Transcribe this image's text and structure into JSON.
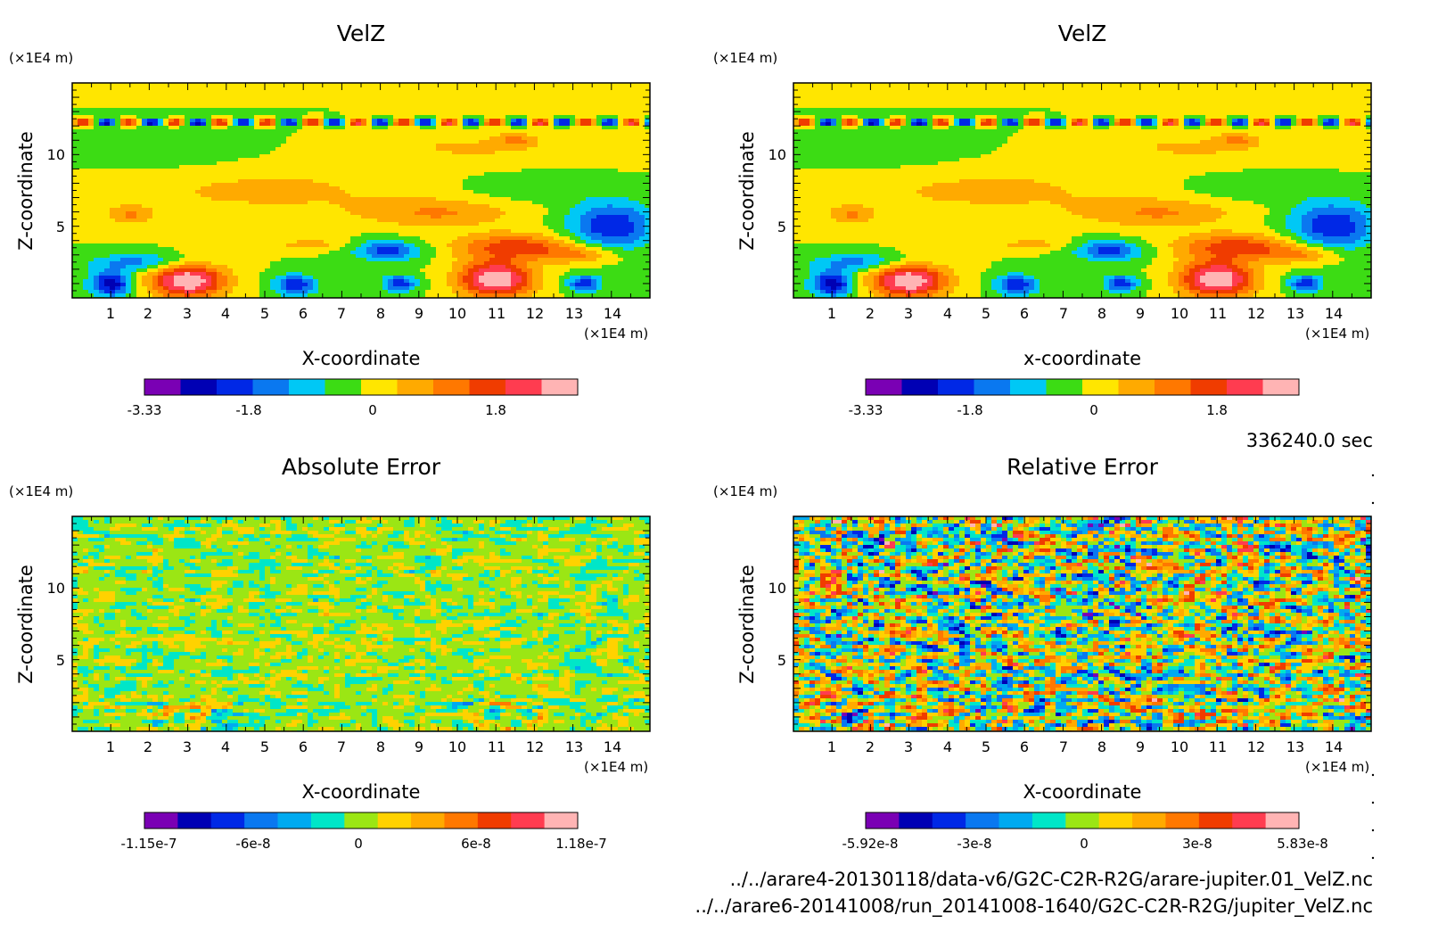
{
  "chart_data": [
    {
      "type": "heatmap",
      "title": "VelZ",
      "xlabel": "X-coordinate",
      "ylabel": "Z-coordinate",
      "x_unit": "(×1E4 m)",
      "y_unit": "(×1E4 m)",
      "xlim": [
        0,
        15
      ],
      "ylim": [
        0,
        15
      ],
      "x_ticks": [
        "1",
        "2",
        "3",
        "4",
        "5",
        "6",
        "7",
        "8",
        "9",
        "10",
        "11",
        "12",
        "13",
        "14"
      ],
      "y_ticks": [
        "5",
        "10"
      ],
      "field": "velz",
      "colorbar": {
        "colors": [
          "#7a00b4",
          "#0000b4",
          "#0028e6",
          "#0a78f0",
          "#00c8f5",
          "#3cdc14",
          "#ffe600",
          "#ffaa00",
          "#ff7800",
          "#f03c00",
          "#ff3c50",
          "#ffb4b4"
        ],
        "tick_labels": [
          "-3.33",
          "-1.8",
          "0",
          "1.8"
        ],
        "tick_values": [
          -3.33,
          -1.8,
          0,
          1.8
        ],
        "range": [
          -3.33,
          3.33
        ]
      }
    },
    {
      "type": "heatmap",
      "title": "VelZ",
      "xlabel": "x-coordinate",
      "ylabel": "Z-coordinate",
      "x_unit": "(×1E4 m)",
      "y_unit": "(×1E4 m)",
      "xlim": [
        0,
        15
      ],
      "ylim": [
        0,
        15
      ],
      "x_ticks": [
        "1",
        "2",
        "3",
        "4",
        "5",
        "6",
        "7",
        "8",
        "9",
        "10",
        "11",
        "12",
        "13",
        "14"
      ],
      "y_ticks": [
        "5",
        "10"
      ],
      "field": "velz",
      "colorbar": {
        "colors": [
          "#7a00b4",
          "#0000b4",
          "#0028e6",
          "#0a78f0",
          "#00c8f5",
          "#3cdc14",
          "#ffe600",
          "#ffaa00",
          "#ff7800",
          "#f03c00",
          "#ff3c50",
          "#ffb4b4"
        ],
        "tick_labels": [
          "-3.33",
          "-1.8",
          "0",
          "1.8"
        ],
        "tick_values": [
          -3.33,
          -1.8,
          0,
          1.8
        ],
        "range": [
          -3.33,
          3.33
        ]
      }
    },
    {
      "type": "heatmap",
      "title": "Absolute Error",
      "xlabel": "X-coordinate",
      "ylabel": "Z-coordinate",
      "x_unit": "(×1E4 m)",
      "y_unit": "(×1E4 m)",
      "xlim": [
        0,
        15
      ],
      "ylim": [
        0,
        15
      ],
      "x_ticks": [
        "1",
        "2",
        "3",
        "4",
        "5",
        "6",
        "7",
        "8",
        "9",
        "10",
        "11",
        "12",
        "13",
        "14"
      ],
      "y_ticks": [
        "5",
        "10"
      ],
      "field": "abs",
      "colorbar": {
        "colors": [
          "#7a00b4",
          "#0000b4",
          "#0028e6",
          "#0a78f0",
          "#00aaf0",
          "#00e6c8",
          "#9be614",
          "#ffd200",
          "#ffaa00",
          "#ff7800",
          "#f03c00",
          "#ff3c50",
          "#ffb4b4"
        ],
        "tick_labels": [
          "-1.15e-7",
          "-6e-8",
          "0",
          "6e-8",
          "1.18e-7"
        ],
        "tick_values": [
          -1.15e-07,
          -6e-08,
          0,
          6e-08,
          1.18e-07
        ],
        "range": [
          -1.15e-07,
          1.18e-07
        ]
      }
    },
    {
      "type": "heatmap",
      "title": "Relative Error",
      "xlabel": "X-coordinate",
      "ylabel": "Z-coordinate",
      "x_unit": "(×1E4 m)",
      "y_unit": "(×1E4 m)",
      "xlim": [
        0,
        15
      ],
      "ylim": [
        0,
        15
      ],
      "x_ticks": [
        "1",
        "2",
        "3",
        "4",
        "5",
        "6",
        "7",
        "8",
        "9",
        "10",
        "11",
        "12",
        "13",
        "14"
      ],
      "y_ticks": [
        "5",
        "10"
      ],
      "field": "rel",
      "colorbar": {
        "colors": [
          "#7a00b4",
          "#0000b4",
          "#0028e6",
          "#0a78f0",
          "#00aaf0",
          "#00e6c8",
          "#9be614",
          "#ffd200",
          "#ffaa00",
          "#ff7800",
          "#f03c00",
          "#ff3c50",
          "#ffb4b4"
        ],
        "tick_labels": [
          "-5.92e-8",
          "-3e-8",
          "0",
          "3e-8",
          "5.83e-8"
        ],
        "tick_values": [
          -5.92e-08,
          -3e-08,
          0,
          3e-08,
          5.83e-08
        ],
        "range": [
          -5.92e-08,
          5.83e-08
        ]
      }
    }
  ],
  "time_label": "336240.0 sec",
  "file_lines": [
    "../../arare4-20130118/data-v6/G2C-C2R-R2G/arare-jupiter.01_VelZ.nc",
    "../../arare6-20141008/run_20141008-1640/G2C-C2R-R2G/jupiter_VelZ.nc"
  ]
}
